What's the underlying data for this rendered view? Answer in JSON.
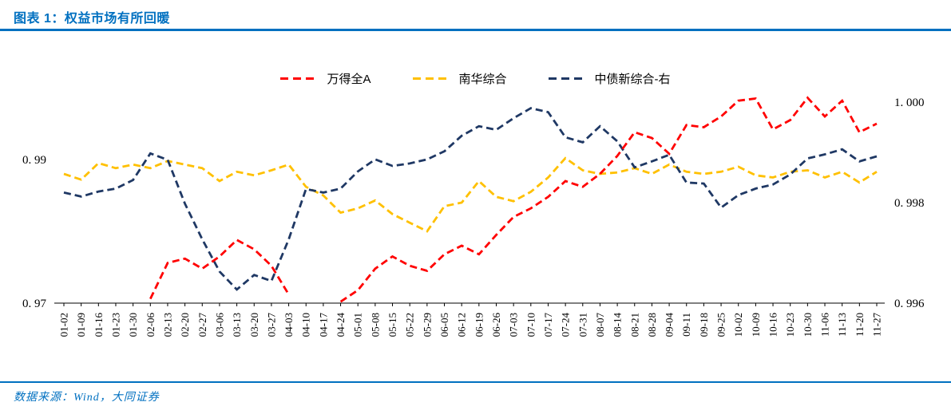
{
  "header": {
    "title": "图表 1：权益市场有所回暖"
  },
  "footer": {
    "source": "数据来源：Wind，大同证券"
  },
  "colors": {
    "accent_blue": "#0070c0",
    "axis_black": "#000000"
  },
  "chart_data": {
    "type": "line",
    "title": "图表 1：权益市场有所回暖",
    "legend_position": "top-center",
    "grid": false,
    "line_style": "dashed",
    "x_labels": [
      "01-02",
      "01-09",
      "01-16",
      "01-23",
      "01-30",
      "02-06",
      "02-13",
      "02-20",
      "02-27",
      "03-06",
      "03-13",
      "03-20",
      "03-27",
      "04-03",
      "04-10",
      "04-17",
      "04-24",
      "05-01",
      "05-08",
      "05-15",
      "05-22",
      "05-29",
      "06-05",
      "06-12",
      "06-19",
      "06-26",
      "07-03",
      "07-10",
      "07-17",
      "07-24",
      "07-31",
      "08-07",
      "08-14",
      "08-21",
      "08-28",
      "09-04",
      "09-11",
      "09-18",
      "09-25",
      "10-02",
      "10-09",
      "10-16",
      "10-23",
      "10-30",
      "11-06",
      "11-13",
      "11-20",
      "11-27"
    ],
    "left_axis": {
      "min": 0.97,
      "max": 1.0,
      "ticks": [
        {
          "v": 0.99,
          "label": "0. 99"
        },
        {
          "v": 0.97,
          "label": "0. 97"
        }
      ]
    },
    "right_axis": {
      "min": 0.996,
      "max": 1.0,
      "ticks": [
        {
          "v": 1.0,
          "label": "1. 000"
        },
        {
          "v": 0.998,
          "label": "0. 998"
        },
        {
          "v": 0.996,
          "label": "0. 996"
        }
      ]
    },
    "series": [
      {
        "name": "万得全A",
        "color": "#ff0000",
        "axis": "left",
        "values": [
          null,
          null,
          null,
          null,
          null,
          0.9706,
          0.9756,
          0.9762,
          0.9748,
          0.9765,
          0.9788,
          0.9775,
          0.9752,
          0.9712,
          null,
          null,
          0.9702,
          0.9718,
          0.9748,
          0.9765,
          0.9752,
          0.9745,
          0.9768,
          0.978,
          0.9768,
          0.9795,
          0.982,
          0.9832,
          0.9848,
          0.987,
          0.9862,
          0.988,
          0.9905,
          0.9938,
          0.993,
          0.9908,
          0.9948,
          0.9945,
          0.996,
          0.9982,
          0.9985,
          0.9942,
          0.9955,
          0.9986,
          0.996,
          0.9982,
          0.9938,
          0.995
        ]
      },
      {
        "name": "南华综合",
        "color": "#ffc000",
        "axis": "left",
        "values": [
          0.988,
          0.9872,
          0.9895,
          0.9888,
          0.9893,
          0.9888,
          0.9898,
          0.9893,
          0.9888,
          0.987,
          0.9883,
          0.9878,
          0.9885,
          0.9893,
          0.9862,
          0.985,
          0.9826,
          0.9832,
          0.9843,
          0.9824,
          0.9812,
          0.98,
          0.9835,
          0.984,
          0.987,
          0.9848,
          0.9842,
          0.9855,
          0.9875,
          0.9902,
          0.9885,
          0.988,
          0.9882,
          0.9888,
          0.988,
          0.9893,
          0.9883,
          0.988,
          0.9883,
          0.989,
          0.9878,
          0.9875,
          0.9883,
          0.9885,
          0.9875,
          0.9883,
          0.9868,
          0.9883
        ]
      },
      {
        "name": "中债新综合-右",
        "color": "#1f3864",
        "axis": "right",
        "values": [
          0.9982,
          0.99812,
          0.99822,
          0.99828,
          0.99845,
          0.99898,
          0.99885,
          0.99798,
          0.99727,
          0.99663,
          0.99627,
          0.99656,
          0.99644,
          0.99727,
          0.99827,
          0.9982,
          0.99828,
          0.99862,
          0.99886,
          0.99873,
          0.99878,
          0.99886,
          0.99902,
          0.99933,
          0.99952,
          0.99945,
          0.99968,
          0.99988,
          0.9998,
          0.9993,
          0.9992,
          0.99952,
          0.99922,
          0.9987,
          0.99882,
          0.99895,
          0.9984,
          0.99838,
          0.9979,
          0.99815,
          0.99828,
          0.99836,
          0.99856,
          0.99888,
          0.99896,
          0.99906,
          0.99882,
          0.99892
        ]
      }
    ]
  }
}
